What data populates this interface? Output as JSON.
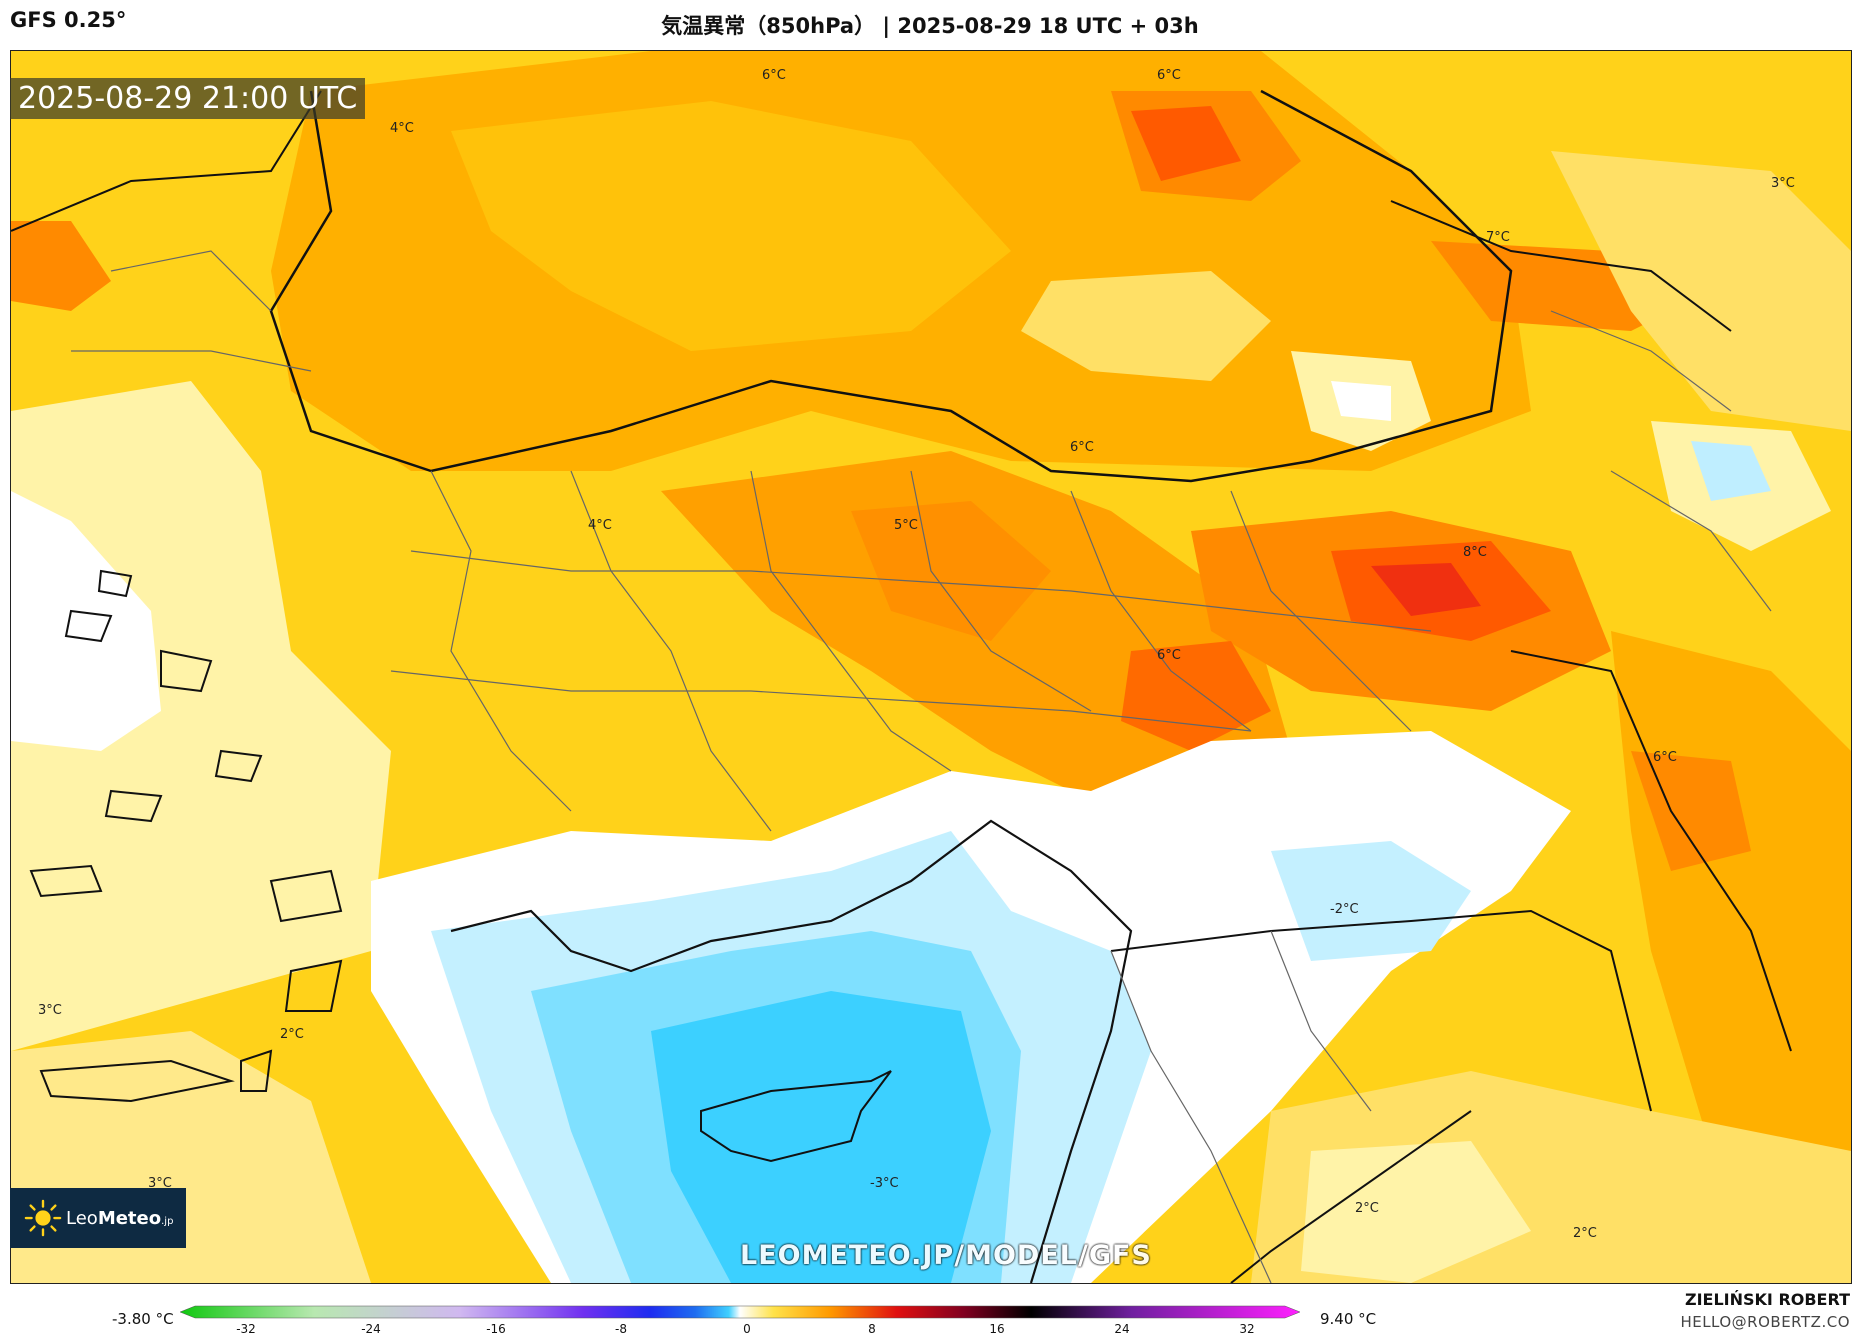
{
  "header": {
    "model": "GFS 0.25°",
    "title": "気温異常（850hPa） | 2025-08-29 18 UTC + 03h"
  },
  "map": {
    "valid_time": "2025-08-29 21:00 UTC",
    "watermark": "LEOMETEO.JP/MODEL/GFS",
    "isoline_labels": [
      "6°C",
      "6°C",
      "4°C",
      "3°C",
      "7°C",
      "6°C",
      "5°C",
      "4°C",
      "8°C",
      "6°C",
      "6°C",
      "-2°C",
      "3°C",
      "2°C",
      "3°C",
      "-3°C",
      "2°C",
      "2°C"
    ]
  },
  "logo": {
    "name_regular": "Leo",
    "name_bold": "Meteo",
    "suffix": ".jp"
  },
  "legend": {
    "min_value": "-3.80 °C",
    "max_value": "9.40 °C",
    "ticks": [
      "-32",
      "-24",
      "-16",
      "-8",
      "0",
      "8",
      "16",
      "24",
      "32"
    ],
    "colors": {
      "cold_extreme": "#10c810",
      "cold": "#1e6cf0",
      "neutral": "#ffffff",
      "warm": "#ff9a00",
      "hot": "#e01010",
      "very_hot": "#000000",
      "extreme": "#ff20ff"
    }
  },
  "footer": {
    "author": "ZIELIŃSKI ROBERT",
    "email": "HELLO@ROBERTZ.CO"
  }
}
